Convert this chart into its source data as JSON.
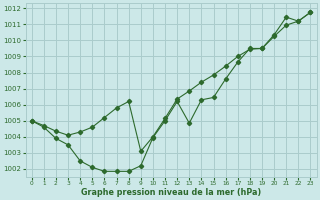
{
  "line1_x": [
    0,
    1,
    2,
    3,
    4,
    5,
    6,
    7,
    8,
    9,
    10,
    11,
    12,
    13,
    14,
    15,
    16,
    17,
    18,
    19,
    20,
    21,
    22,
    23
  ],
  "line1_y": [
    1005.0,
    1004.6,
    1003.9,
    1003.5,
    1002.5,
    1002.1,
    1001.85,
    1001.85,
    1001.85,
    1002.2,
    1003.95,
    1005.0,
    1006.2,
    1004.85,
    1006.3,
    1006.45,
    1007.6,
    1008.65,
    1009.5,
    1009.5,
    1010.35,
    1011.45,
    1011.2,
    1011.75
  ],
  "line2_x": [
    0,
    1,
    2,
    3,
    4,
    5,
    6,
    7,
    8,
    9,
    10,
    11,
    12,
    13,
    14,
    15,
    16,
    17,
    18,
    19,
    20,
    21,
    22,
    23
  ],
  "line2_y": [
    1005.0,
    1004.7,
    1004.35,
    1004.1,
    1004.3,
    1004.6,
    1005.2,
    1005.8,
    1006.2,
    1003.1,
    1004.0,
    1005.15,
    1006.35,
    1006.85,
    1007.4,
    1007.85,
    1008.4,
    1009.0,
    1009.45,
    1009.5,
    1010.25,
    1010.95,
    1011.2,
    1011.75
  ],
  "line_color": "#2d6a2d",
  "bg_color": "#cce8e8",
  "grid_color": "#aacccc",
  "xlabel": "Graphe pression niveau de la mer (hPa)",
  "ylim": [
    1001.5,
    1012.3
  ],
  "xlim": [
    -0.5,
    23.5
  ],
  "yticks": [
    1002,
    1003,
    1004,
    1005,
    1006,
    1007,
    1008,
    1009,
    1010,
    1011,
    1012
  ],
  "xticks": [
    0,
    1,
    2,
    3,
    4,
    5,
    6,
    7,
    8,
    9,
    10,
    11,
    12,
    13,
    14,
    15,
    16,
    17,
    18,
    19,
    20,
    21,
    22,
    23
  ],
  "ytick_fontsize": 5.0,
  "xtick_fontsize": 4.2,
  "xlabel_fontsize": 5.8
}
